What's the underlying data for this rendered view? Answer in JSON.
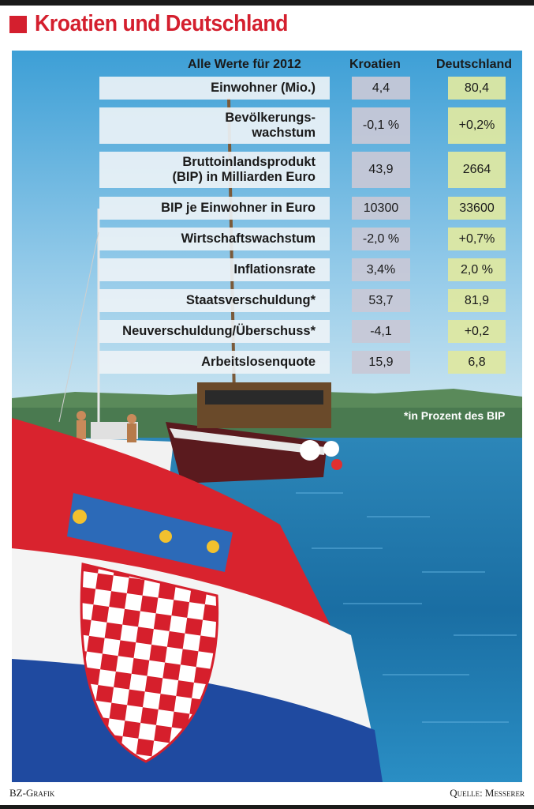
{
  "title": "Kroatien und Deutschland",
  "credit_left": "BZ-Grafik",
  "credit_right": "Quelle: Messerer",
  "footnote": "*in Prozent des BIP",
  "colors": {
    "title_red": "#d41f2e",
    "kroatien_cell": "#c8c8d6",
    "deutschland_cell": "#dee8a2",
    "label_cell": "#ecf2f6"
  },
  "chart_data": {
    "type": "table",
    "title": "Kroatien und Deutschland",
    "header": {
      "label": "Alle Werte für 2012",
      "col1": "Kroatien",
      "col2": "Deutschland"
    },
    "rows": [
      {
        "label": "Einwohner (Mio.)",
        "kroatien": "4,4",
        "deutschland": "80,4"
      },
      {
        "label": "Bevölkerungs-\nwachstum",
        "kroatien": "-0,1 %",
        "deutschland": "+0,2%"
      },
      {
        "label": "Bruttoinlandsprodukt\n(BIP) in Milliarden Euro",
        "kroatien": "43,9",
        "deutschland": "2664"
      },
      {
        "label": "BIP je Einwohner in Euro",
        "kroatien": "10300",
        "deutschland": "33600"
      },
      {
        "label": "Wirtschaftswachstum",
        "kroatien": "-2,0 %",
        "deutschland": "+0,7%"
      },
      {
        "label": "Inflationsrate",
        "kroatien": "3,4%",
        "deutschland": "2,0 %"
      },
      {
        "label": "Staatsverschuldung*",
        "kroatien": "53,7",
        "deutschland": "81,9"
      },
      {
        "label": "Neuverschuldung/Überschuss*",
        "kroatien": "-4,1",
        "deutschland": "+0,2"
      },
      {
        "label": "Arbeitslosenquote",
        "kroatien": "15,9",
        "deutschland": "6,8"
      }
    ]
  }
}
